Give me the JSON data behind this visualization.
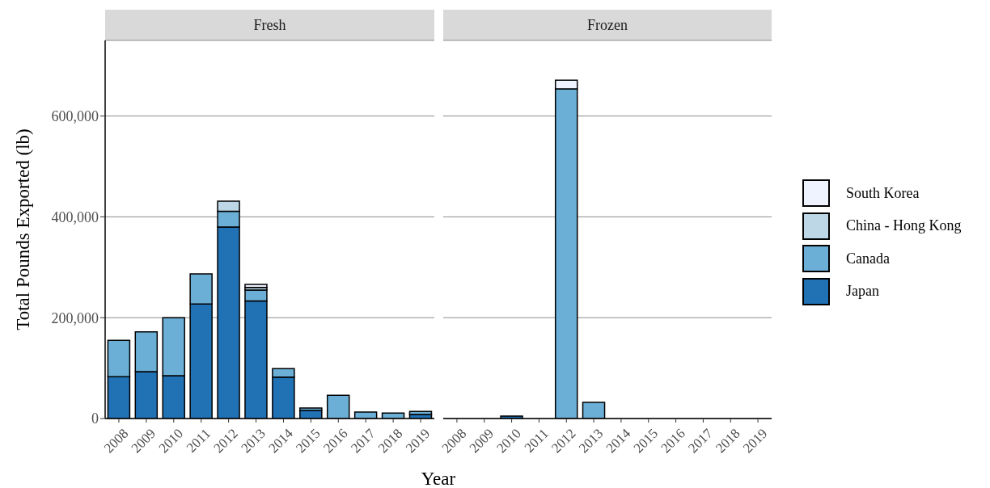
{
  "chart_data": [
    {
      "type": "bar",
      "title": "Fresh",
      "xlabel": "Year",
      "ylabel": "Total Pounds Exported (lb)",
      "stacked": true,
      "grid": "y",
      "legend": false,
      "categories": [
        "2008",
        "2009",
        "2010",
        "2011",
        "2012",
        "2013",
        "2014",
        "2015",
        "2016",
        "2017",
        "2018",
        "2019"
      ],
      "ylim": [
        0,
        750000
      ],
      "yticks": [
        0,
        {
          "value": 200000,
          "label": "200,000"
        },
        {
          "value": 400000,
          "label": "400,000"
        },
        {
          "value": 600000,
          "label": "600,000"
        }
      ],
      "series": [
        {
          "color": "#2171b5",
          "values": [
            83000,
            93000,
            85000,
            227000,
            380000,
            233000,
            82000,
            16000,
            0,
            0,
            0,
            8000
          ]
        },
        {
          "color": "#6baed6",
          "values": [
            72000,
            79000,
            115000,
            60000,
            31000,
            22000,
            17000,
            5000,
            46000,
            13000,
            11000,
            6000
          ]
        },
        {
          "color": "#bdd7e7",
          "values": [
            0,
            0,
            0,
            0,
            20000,
            5000,
            0,
            0,
            0,
            0,
            0,
            0
          ]
        },
        {
          "color": "#eff3ff",
          "values": [
            0,
            0,
            0,
            0,
            0,
            6000,
            0,
            0,
            0,
            0,
            0,
            0
          ]
        }
      ]
    },
    {
      "type": "bar",
      "title": "Frozen",
      "stacked": true,
      "grid": "y",
      "legend": "right",
      "tick_labels": "x",
      "categories": [
        "2008",
        "2009",
        "2010",
        "2011",
        "2012",
        "2013",
        "2014",
        "2015",
        "2016",
        "2017",
        "2018",
        "2019"
      ],
      "ylim": [
        0,
        750000
      ],
      "yticks": [
        0,
        200000,
        400000,
        600000
      ],
      "series": [
        {
          "name": "Japan",
          "color": "#2171b5",
          "values": [
            0,
            0,
            5000,
            0,
            0,
            0,
            0,
            null,
            0,
            0,
            0,
            0
          ]
        },
        {
          "name": "Canada",
          "color": "#6baed6",
          "values": [
            0,
            0,
            0,
            0,
            654000,
            32000,
            0,
            0,
            0,
            0,
            0,
            0
          ]
        },
        {
          "name": "China - Hong Kong",
          "color": "#bdd7e7",
          "values": [
            0,
            0,
            0,
            0,
            0,
            0,
            0,
            0,
            0,
            0,
            0,
            0
          ]
        },
        {
          "name": "South Korea",
          "color": "#eff3ff",
          "values": [
            0,
            0,
            0,
            0,
            17000,
            0,
            0,
            0,
            0,
            0,
            0,
            0
          ]
        }
      ]
    }
  ]
}
